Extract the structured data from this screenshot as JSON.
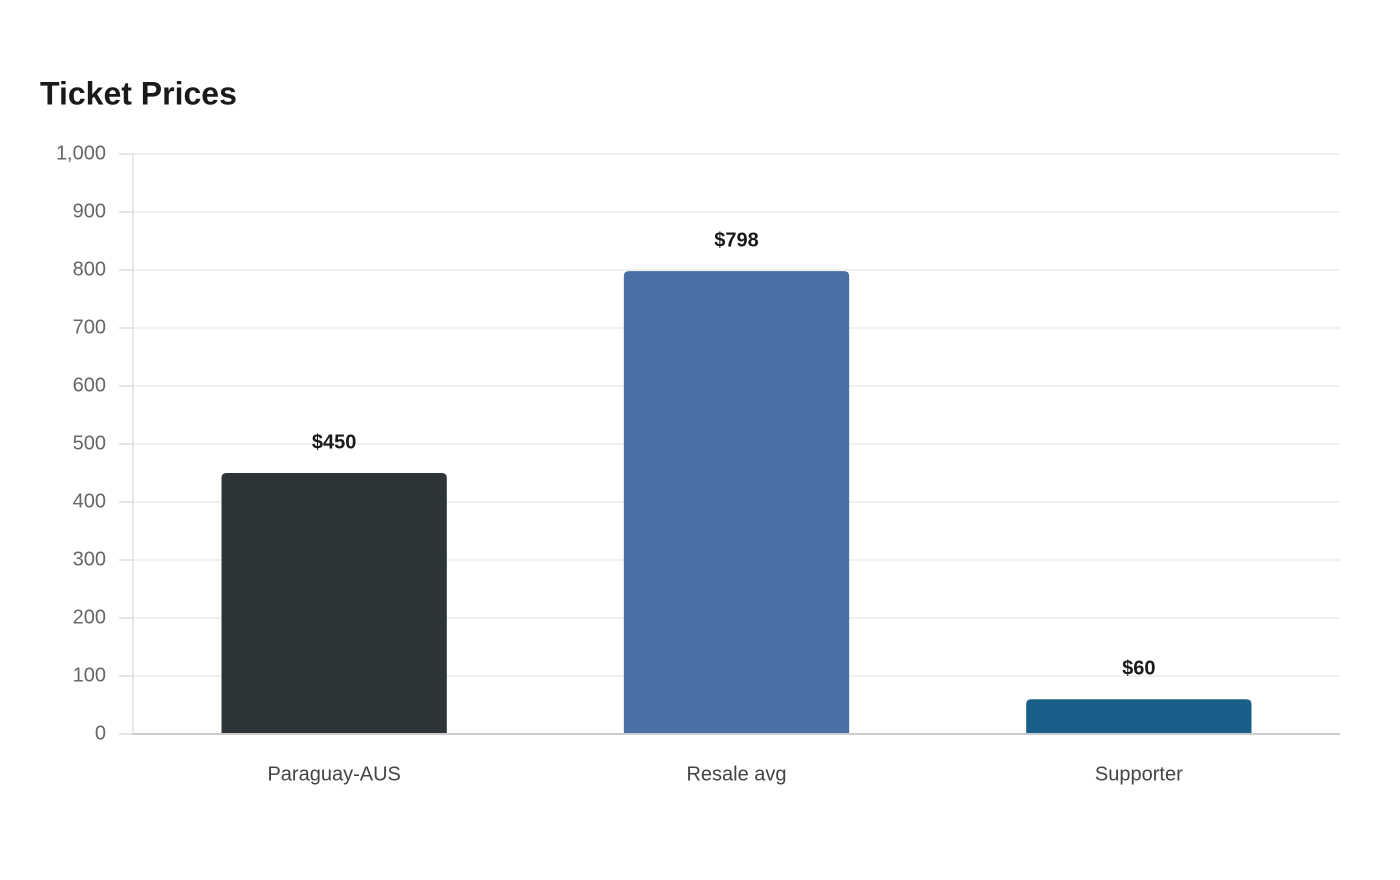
{
  "chart_data": {
    "type": "bar",
    "title": "Ticket Prices",
    "categories": [
      "Paraguay-AUS",
      "Resale avg",
      "Supporter"
    ],
    "values": [
      450,
      798,
      60
    ],
    "value_labels": [
      "$450",
      "$798",
      "$60"
    ],
    "colors": [
      "#2e3538",
      "#4a6fa5",
      "#1a5f8a"
    ],
    "ylim": [
      0,
      1000
    ],
    "yticks": [
      0,
      100,
      200,
      300,
      400,
      500,
      600,
      700,
      800,
      900,
      {
        "value": 1000,
        "label": "1,000"
      }
    ],
    "grid": true
  }
}
